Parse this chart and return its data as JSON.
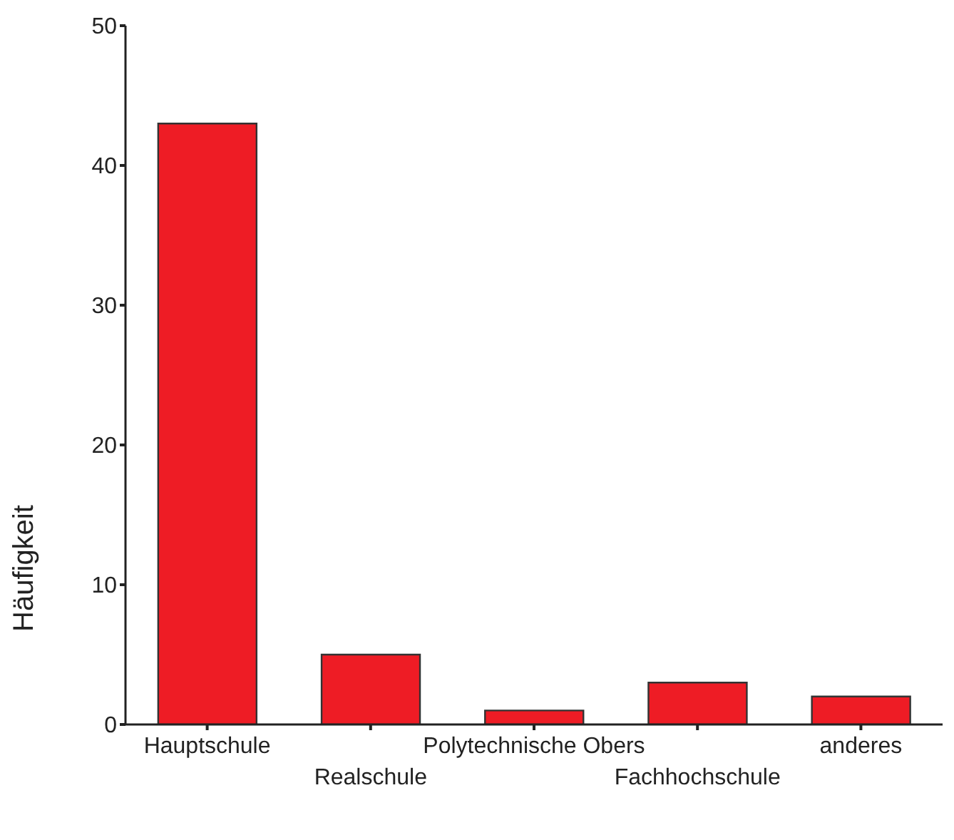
{
  "chart_data": {
    "type": "bar",
    "ylabel": "Häufigkeit",
    "categories": [
      "Hauptschule",
      "Realschule",
      "Polytechnische Obers",
      "Fachhochschule",
      "anderes"
    ],
    "values": [
      43,
      5,
      1,
      3,
      2
    ],
    "color": "#ee1c25",
    "ylim": [
      0,
      50
    ],
    "yticks": [
      0,
      10,
      20,
      30,
      40,
      50
    ],
    "grid": false,
    "legend": false
  }
}
